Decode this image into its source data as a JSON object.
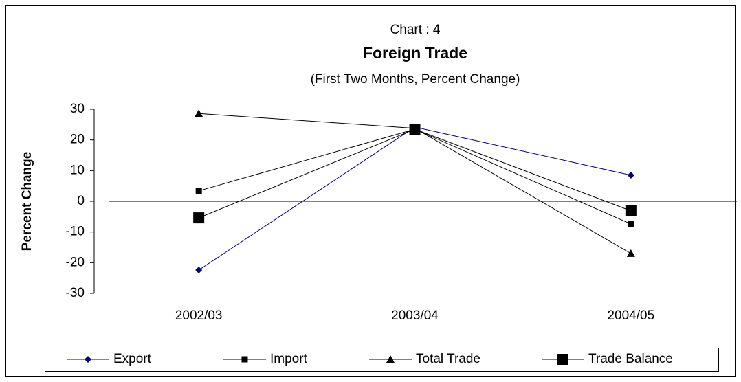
{
  "chart_data": {
    "type": "line",
    "header": "Chart : 4",
    "title": "Foreign Trade",
    "subtitle": "(First Two Months, Percent Change)",
    "y_label": "Percent Change",
    "categories": [
      "2002/03",
      "2003/04",
      "2004/05"
    ],
    "series": [
      {
        "name": "Export",
        "color": "#000080",
        "marker": "diamond",
        "values": [
          -22.4,
          24.2,
          8.5
        ]
      },
      {
        "name": "Import",
        "color": "#000000",
        "marker": "square",
        "values": [
          3.4,
          23.5,
          -7.4
        ]
      },
      {
        "name": "Total Trade",
        "color": "#000000",
        "marker": "triangle",
        "values": [
          28.6,
          23.8,
          -17
        ]
      },
      {
        "name": "Trade Balance",
        "color": "#000000",
        "marker": "big-square",
        "values": [
          -5.4,
          23.5,
          -3.1
        ]
      }
    ],
    "ylim": [
      -30,
      30
    ],
    "yticks": [
      -30,
      -20,
      -10,
      0,
      10,
      20,
      30
    ],
    "legend": "bottom"
  }
}
